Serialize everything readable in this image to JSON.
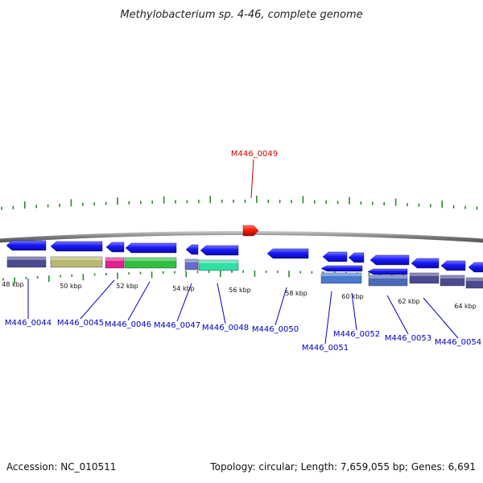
{
  "title": "Methylobacterium sp. 4-46, complete genome",
  "footer": {
    "accession": "Accession: NC_010511",
    "summary": "Topology: circular; Length: 7,659,055 bp; Genes: 6,691"
  },
  "colors": {
    "forward_gene": "#ff1a00",
    "reverse_gene": "#1a1aff",
    "backbone": "#8a8a8a",
    "tick": "#2a8a2a",
    "label_forward": "#d00000",
    "label_reverse": "#0000c0"
  },
  "tick_labels": [
    "48 kbp",
    "50 kbp",
    "52 kbp",
    "54 kbp",
    "56 kbp",
    "58 kbp",
    "60 kbp",
    "62 kbp",
    "64 kbp"
  ],
  "forward_genes": [
    {
      "id": "M446_0049"
    }
  ],
  "reverse_genes": [
    {
      "id": "M446_0044"
    },
    {
      "id": "M446_0045"
    },
    {
      "id": "M446_0046"
    },
    {
      "id": "M446_0047"
    },
    {
      "id": "M446_0048"
    },
    {
      "id": "M446_0050"
    },
    {
      "id": "M446_0051"
    },
    {
      "id": "M446_0052"
    },
    {
      "id": "M446_0053"
    },
    {
      "id": "M446_0054"
    }
  ],
  "extra_reverse_arrows": 4,
  "cog_band_colors": [
    "#4a4a8e",
    "#b8b870",
    "#e0208c",
    "#30c040",
    "#6a6ac8",
    "#30e0a0",
    "#4a7ad0",
    "#4a6ab8",
    "#4a4a8e",
    "#4a4a8e",
    "#4a4a8e"
  ]
}
